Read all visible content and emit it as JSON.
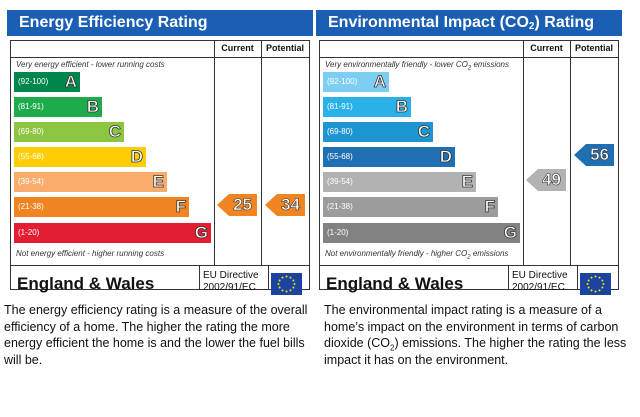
{
  "energy": {
    "title": "Energy Efficiency Rating",
    "col_current": "Current",
    "col_potential": "Potential",
    "top_note": "Very energy efficient - lower running costs",
    "bottom_note": "Not energy efficient - higher running costs",
    "bands": [
      {
        "range": "(92-100)",
        "letter": "A",
        "color": "#00854a"
      },
      {
        "range": "(81-91)",
        "letter": "B",
        "color": "#1eab4b"
      },
      {
        "range": "(69-80)",
        "letter": "C",
        "color": "#8cc541"
      },
      {
        "range": "(55-68)",
        "letter": "D",
        "color": "#ffcd04"
      },
      {
        "range": "(39-54)",
        "letter": "E",
        "color": "#f8ad6c"
      },
      {
        "range": "(21-38)",
        "letter": "F",
        "color": "#f08420"
      },
      {
        "range": "(1-20)",
        "letter": "G",
        "color": "#e41e32"
      }
    ],
    "current": {
      "value": "25",
      "band": "F",
      "color": "#f08420"
    },
    "potential": {
      "value": "34",
      "band": "F",
      "color": "#f08420"
    },
    "region": "England & Wales",
    "directive_line1": "EU Directive",
    "directive_line2": "2002/91/EC",
    "description": "The energy efficiency rating is a measure of the overall efficiency of a home. The higher the rating the more energy efficient the home is and the lower the fuel bills will be."
  },
  "environmental": {
    "title_main": "Environmental Impact (CO",
    "title_sub": "2",
    "title_end": ") Rating",
    "col_current": "Current",
    "col_potential": "Potential",
    "top_note_main": "Very environmentally friendly - lower CO",
    "top_note_sub": "2",
    "top_note_end": " emissions",
    "bottom_note_main": "Not environmentally friendly - higher CO",
    "bottom_note_sub": "2",
    "bottom_note_end": " emissions",
    "bands": [
      {
        "range": "(92-100)",
        "letter": "A",
        "color": "#7ecef4"
      },
      {
        "range": "(81-91)",
        "letter": "B",
        "color": "#29b1e8"
      },
      {
        "range": "(69-80)",
        "letter": "C",
        "color": "#1c95d0"
      },
      {
        "range": "(55-68)",
        "letter": "D",
        "color": "#1f6fb3"
      },
      {
        "range": "(39-54)",
        "letter": "E",
        "color": "#b2b2b2"
      },
      {
        "range": "(21-38)",
        "letter": "F",
        "color": "#9c9c9c"
      },
      {
        "range": "(1-20)",
        "letter": "G",
        "color": "#828282"
      }
    ],
    "current": {
      "value": "49",
      "band": "E",
      "color": "#b2b2b2"
    },
    "potential": {
      "value": "56",
      "band": "D",
      "color": "#1f6fb3"
    },
    "region": "England & Wales",
    "directive_line1": "EU Directive",
    "directive_line2": "2002/91/EC",
    "desc_main": "The environmental impact rating is a measure of a home’s impact on the environment in terms of carbon dioxide (CO",
    "desc_sub": "2",
    "desc_end": ") emissions. The higher the rating the less impact it has on the environment."
  }
}
